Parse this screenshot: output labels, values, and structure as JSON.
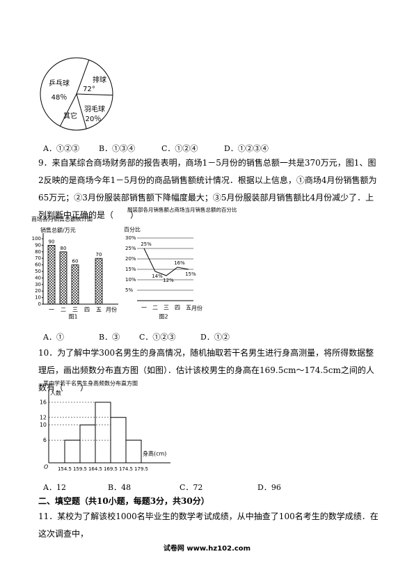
{
  "pie": {
    "labels": [
      "乒乓球",
      "48％",
      "排球",
      "72°",
      "羽毛球",
      "20％",
      "其它"
    ]
  },
  "q8_options": [
    "A．①②③",
    "B．①③④",
    "C．①②④",
    "D．①②③④"
  ],
  "q9": {
    "text": "9．来自某综合商场财务部的报告表明，商场1－5月份的销售总额一共是370万元，图1、图2反映的是商场今年1－5月份的商品销售额统计情况．根据以上信息，①商场4月份销售额为65万元；②3月份服装部销售额下降幅度最大；③5月份服装部月销售额比4月份减少了．上列判断中正确的是（　　）",
    "options": [
      "A．①",
      "B．③",
      "C．①②③",
      "D．①②"
    ]
  },
  "fig1": {
    "title": "商场各月销售总额统计图",
    "y_label": "销售总额/万元",
    "x_label": "月份",
    "caption": "图1",
    "categories": [
      "一",
      "二",
      "三",
      "四",
      "五"
    ],
    "values": [
      90,
      80,
      60,
      null,
      70
    ],
    "ylim": [
      0,
      100
    ],
    "yticks": [
      0,
      10,
      20,
      30,
      40,
      50,
      60,
      70,
      80,
      90,
      100
    ]
  },
  "fig2": {
    "title": "服装部各月销售额占商场当月销售总额的百分比",
    "y_label": "百分比",
    "x_label": "月份",
    "caption": "图2",
    "categories": [
      "一",
      "二",
      "三",
      "四",
      "五"
    ],
    "values": [
      25,
      14,
      12,
      16,
      15
    ],
    "value_labels": [
      "25%",
      "14%",
      "12%",
      "16%",
      "15%"
    ],
    "ylim": [
      0,
      30
    ],
    "yticks": [
      {
        "value": 5,
        "label": "5%"
      },
      {
        "value": 10,
        "label": "10%"
      },
      {
        "value": 15,
        "label": "15%"
      },
      {
        "value": 20,
        "label": "20%"
      },
      {
        "value": 25,
        "label": "25%"
      },
      {
        "value": 30,
        "label": "30%"
      }
    ]
  },
  "q10": {
    "text": "10．为了解中学300名男生的身高情况，随机抽取若干名男生进行身高测量，将所得数据整理后，画出频数分布直方图（如图）．估计该校男生的身高在169.5cm～174.5cm之间的人数有（　　）",
    "options": [
      "A．12",
      "B．48",
      "C．72",
      "D．96"
    ]
  },
  "fig3": {
    "title": "某中学若干名男生身高频数分布直方图",
    "y_label": "人数",
    "x_label": "身高(cm)",
    "origin": "O",
    "bins": [
      154.5,
      159.5,
      164.5,
      169.5,
      174.5,
      179.5
    ],
    "values": [
      6,
      10,
      16,
      12,
      6
    ],
    "ylim": [
      0,
      16
    ],
    "yticks": [
      6,
      10,
      12,
      16
    ]
  },
  "section": "二、填空题（共10小题，每题3分，共30分）",
  "q11": "11．某校为了解该校1000名毕业生的数学考试成绩，从中抽查了100名考生的数学成绩．在这次调查中，",
  "footer": "试卷网 www.hz102.com"
}
